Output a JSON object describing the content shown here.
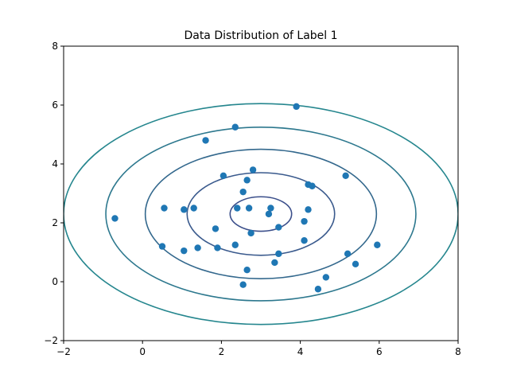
{
  "chart_data": {
    "type": "scatter",
    "title": "Data Distribution of Label 1",
    "xlabel": "",
    "ylabel": "",
    "xlim": [
      -2,
      8
    ],
    "ylim": [
      -2,
      8
    ],
    "grid": false,
    "x_ticks": [
      -2,
      0,
      2,
      4,
      6,
      8
    ],
    "y_ticks": [
      -2,
      0,
      2,
      4,
      6,
      8
    ],
    "x_tick_labels": [
      "−2",
      "0",
      "2",
      "4",
      "6",
      "8"
    ],
    "y_tick_labels": [
      "−2",
      "0",
      "2",
      "4",
      "6",
      "8"
    ],
    "point_color": "#1f77b4",
    "points": [
      {
        "x": 3.9,
        "y": 5.95
      },
      {
        "x": 2.35,
        "y": 5.25
      },
      {
        "x": 1.6,
        "y": 4.8
      },
      {
        "x": 2.8,
        "y": 3.8
      },
      {
        "x": 2.05,
        "y": 3.6
      },
      {
        "x": 2.65,
        "y": 3.45
      },
      {
        "x": 5.15,
        "y": 3.6
      },
      {
        "x": 4.2,
        "y": 3.3
      },
      {
        "x": 4.3,
        "y": 3.25
      },
      {
        "x": 2.55,
        "y": 3.05
      },
      {
        "x": -0.7,
        "y": 2.15
      },
      {
        "x": 0.55,
        "y": 2.5
      },
      {
        "x": 1.05,
        "y": 2.45
      },
      {
        "x": 1.3,
        "y": 2.5
      },
      {
        "x": 2.4,
        "y": 2.5
      },
      {
        "x": 2.7,
        "y": 2.5
      },
      {
        "x": 3.25,
        "y": 2.5
      },
      {
        "x": 4.2,
        "y": 2.45
      },
      {
        "x": 3.2,
        "y": 2.3
      },
      {
        "x": 4.1,
        "y": 2.05
      },
      {
        "x": 3.45,
        "y": 1.85
      },
      {
        "x": 1.85,
        "y": 1.8
      },
      {
        "x": 2.75,
        "y": 1.65
      },
      {
        "x": 4.1,
        "y": 1.4
      },
      {
        "x": 5.95,
        "y": 1.25
      },
      {
        "x": 0.5,
        "y": 1.2
      },
      {
        "x": 1.05,
        "y": 1.05
      },
      {
        "x": 1.4,
        "y": 1.15
      },
      {
        "x": 1.9,
        "y": 1.15
      },
      {
        "x": 2.35,
        "y": 1.25
      },
      {
        "x": 3.45,
        "y": 0.95
      },
      {
        "x": 5.2,
        "y": 0.95
      },
      {
        "x": 3.35,
        "y": 0.65
      },
      {
        "x": 5.4,
        "y": 0.6
      },
      {
        "x": 2.65,
        "y": 0.4
      },
      {
        "x": 4.65,
        "y": 0.15
      },
      {
        "x": 2.55,
        "y": -0.1
      },
      {
        "x": 4.45,
        "y": -0.25
      }
    ],
    "contours": {
      "center": [
        3.0,
        2.3
      ],
      "rx_scale": 1.0,
      "ry_scale": 0.75,
      "levels": [
        {
          "r": 0.78,
          "color": "#3b4f8b"
        },
        {
          "r": 1.87,
          "color": "#3a5a8d"
        },
        {
          "r": 2.93,
          "color": "#33688d"
        },
        {
          "r": 3.93,
          "color": "#2d788e"
        },
        {
          "r": 5.0,
          "color": "#25868e"
        }
      ]
    }
  }
}
